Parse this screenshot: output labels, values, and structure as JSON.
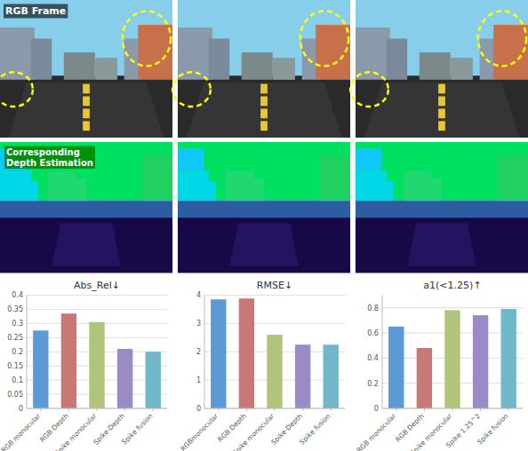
{
  "chart_data": [
    {
      "type": "bar",
      "title": "Abs_Rel↓",
      "categories": [
        "RGB monocular",
        "RGB-Depth",
        "Spike monocular",
        "Spike-Depth",
        "Spike fusion"
      ],
      "values": [
        0.275,
        0.335,
        0.305,
        0.21,
        0.2
      ],
      "colors": [
        "#5b9bd5",
        "#c97878",
        "#b0c47c",
        "#9b8bc4",
        "#70b8c8"
      ],
      "ylim": [
        0,
        0.4
      ],
      "yticks": [
        0,
        0.05,
        0.1,
        0.15,
        0.2,
        0.25,
        0.3,
        0.35,
        0.4
      ],
      "grid": true
    },
    {
      "type": "bar",
      "title": "RMSE↓",
      "categories": [
        "RGBmonocular",
        "RGB Depth",
        "Spike monocular",
        "Spike-Depth",
        "Spike fusion"
      ],
      "values": [
        3.85,
        3.88,
        2.6,
        2.25,
        2.25
      ],
      "colors": [
        "#5b9bd5",
        "#c97878",
        "#b0c47c",
        "#9b8bc4",
        "#70b8c8"
      ],
      "ylim": [
        0,
        4
      ],
      "yticks": [
        0,
        1,
        2,
        3,
        4
      ],
      "grid": true
    },
    {
      "type": "bar",
      "title": "a1(<1.25)↑",
      "categories": [
        "RGB monocular",
        "RGB Depth",
        "Spike monocular",
        "Spike 1.25^2",
        "Spike fusion"
      ],
      "values": [
        0.65,
        0.48,
        0.78,
        0.74,
        0.79
      ],
      "colors": [
        "#5b9bd5",
        "#c97878",
        "#b0c47c",
        "#9b8bc4",
        "#70b8c8"
      ],
      "ylim": [
        0,
        0.9
      ],
      "yticks": [
        0,
        0.2,
        0.4,
        0.6,
        0.8
      ],
      "grid": true
    }
  ],
  "annotations": [
    "RGB Frame",
    "Corresponding\nDepth Estimation"
  ]
}
